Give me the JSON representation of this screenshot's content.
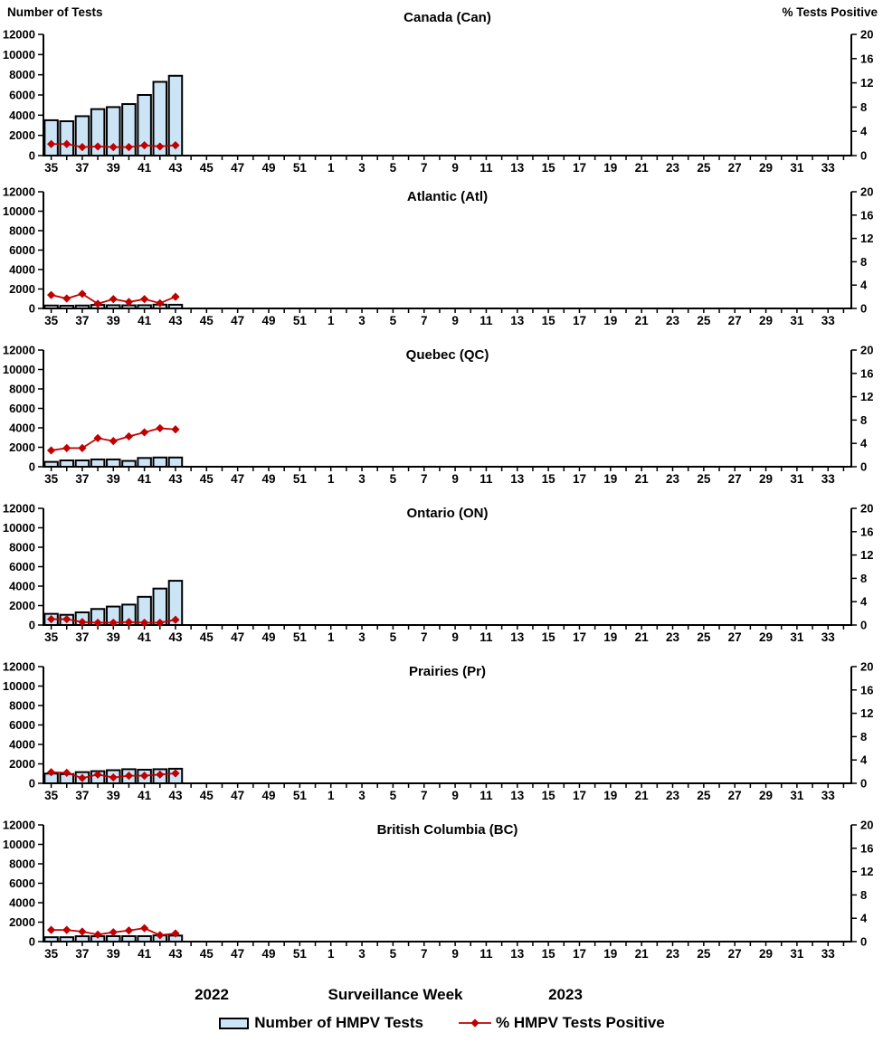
{
  "colors": {
    "bar_fill": "#CCE5F6",
    "bar_stroke": "#000000",
    "line": "#C00000",
    "axis": "#000000",
    "text": "#000000",
    "background": "#FFFFFF"
  },
  "chart_data": {
    "type": "bar+line",
    "x_axis": {
      "label": "Surveillance Week",
      "year_left": "2022",
      "year_right": "2023",
      "weeks": [
        35,
        36,
        37,
        38,
        39,
        40,
        41,
        42,
        43,
        44,
        45,
        46,
        47,
        48,
        49,
        50,
        51,
        52,
        1,
        2,
        3,
        4,
        5,
        6,
        7,
        8,
        9,
        10,
        11,
        12,
        13,
        14,
        15,
        16,
        17,
        18,
        19,
        20,
        21,
        22,
        23,
        24,
        25,
        26,
        27,
        28,
        29,
        30,
        31,
        32,
        33,
        34
      ],
      "tick_label_step": 2,
      "labeled_weeks": [
        35,
        37,
        39,
        41,
        43,
        45,
        47,
        49,
        51,
        1,
        3,
        5,
        7,
        9,
        11,
        13,
        15,
        17,
        19,
        21,
        23,
        25,
        27,
        29,
        31,
        33
      ]
    },
    "left_axis": {
      "title": "Number of Tests",
      "min": 0,
      "max": 12000,
      "tick_step": 2000
    },
    "right_axis": {
      "title": "% Tests Positive",
      "min": 0,
      "max": 20,
      "tick_step": 4
    },
    "series_info": [
      {
        "name": "Number of HMPV Tests",
        "type": "bar",
        "axis": "left"
      },
      {
        "name": "% HMPV Tests Positive",
        "type": "line",
        "axis": "right"
      }
    ],
    "data_weeks": [
      35,
      36,
      37,
      38,
      39,
      40,
      41,
      42,
      43
    ],
    "panels": [
      {
        "title": "Canada (Can)",
        "tests": [
          3500,
          3400,
          3900,
          4600,
          4800,
          5100,
          6000,
          7300,
          7900
        ],
        "pct_positive": [
          1.9,
          1.9,
          1.4,
          1.5,
          1.4,
          1.4,
          1.7,
          1.5,
          1.7
        ]
      },
      {
        "title": "Atlantic (Atl)",
        "tests": [
          300,
          280,
          300,
          360,
          330,
          320,
          330,
          390,
          380
        ],
        "pct_positive": [
          2.3,
          1.7,
          2.5,
          0.8,
          1.6,
          1.1,
          1.6,
          0.9,
          2.0
        ]
      },
      {
        "title": "Quebec (QC)",
        "tests": [
          500,
          650,
          650,
          750,
          750,
          600,
          900,
          950,
          950
        ],
        "pct_positive": [
          2.8,
          3.2,
          3.2,
          4.9,
          4.4,
          5.2,
          5.9,
          6.6,
          6.4
        ]
      },
      {
        "title": "Ontario (ON)",
        "tests": [
          1150,
          1050,
          1300,
          1650,
          1900,
          2100,
          2900,
          3750,
          4550
        ],
        "pct_positive": [
          1.0,
          1.0,
          0.5,
          0.4,
          0.4,
          0.5,
          0.4,
          0.4,
          0.9
        ]
      },
      {
        "title": "Prairies (Pr)",
        "tests": [
          1000,
          950,
          1150,
          1250,
          1350,
          1450,
          1400,
          1450,
          1500
        ],
        "pct_positive": [
          1.9,
          1.8,
          0.9,
          1.5,
          1.0,
          1.3,
          1.3,
          1.5,
          1.7
        ]
      },
      {
        "title": "British Columbia (BC)",
        "tests": [
          450,
          450,
          550,
          550,
          560,
          560,
          560,
          640,
          620
        ],
        "pct_positive": [
          2.0,
          2.0,
          1.7,
          1.2,
          1.6,
          1.9,
          2.3,
          1.1,
          1.4
        ]
      }
    ]
  }
}
